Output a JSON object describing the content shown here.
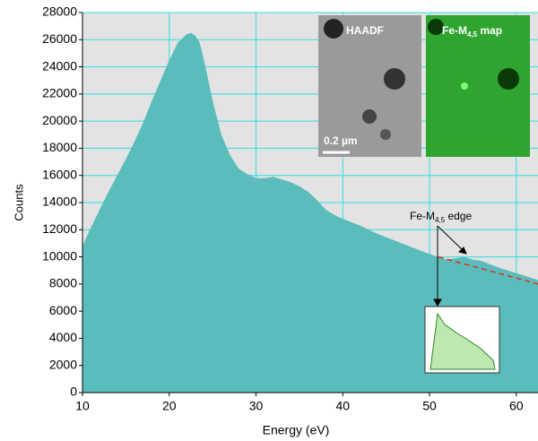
{
  "chart_data": {
    "type": "area",
    "x_label": "Energy (eV)",
    "y_label": "Counts",
    "x": [
      10,
      11,
      12,
      13,
      14,
      15,
      16,
      17,
      18,
      19,
      20,
      21,
      22,
      22.5,
      23,
      23.5,
      24,
      25,
      26,
      27,
      28,
      29,
      30,
      31,
      32,
      33,
      34,
      35,
      36,
      37,
      38,
      39,
      40,
      42,
      44,
      46,
      48,
      50,
      52,
      53,
      54,
      55,
      56,
      58,
      60,
      62.5
    ],
    "values": [
      10800,
      12200,
      13500,
      14800,
      16000,
      17200,
      18500,
      19900,
      21500,
      23000,
      24500,
      25800,
      26400,
      26500,
      26300,
      25800,
      24500,
      21500,
      19000,
      17500,
      16500,
      16100,
      15800,
      15800,
      15900,
      15700,
      15500,
      15200,
      14800,
      14200,
      13500,
      13100,
      12800,
      12300,
      11700,
      11200,
      10700,
      10200,
      9800,
      9900,
      10000,
      9800,
      9700,
      9200,
      8800,
      8300
    ],
    "color": "#5bbcbc",
    "xlim": [
      10,
      62.5
    ],
    "xticks": [
      10,
      20,
      30,
      40,
      50,
      60
    ],
    "ylim": [
      0,
      28000
    ],
    "yticks": [
      0,
      2000,
      4000,
      6000,
      8000,
      10000,
      12000,
      14000,
      16000,
      18000,
      20000,
      22000,
      24000,
      26000,
      28000
    ],
    "grid": true,
    "grid_color": "#33dde0",
    "background_fit": {
      "x": [
        51,
        62.5
      ],
      "values": [
        10000,
        8000
      ],
      "color": "#e03020"
    },
    "edge_label": {
      "main": "Fe-M",
      "sub": "4,5",
      "rest": " edge"
    },
    "insets": {
      "haadf": "HAADF",
      "map_main": "Fe-M",
      "map_sub": "4,5",
      "map_rest": " map",
      "scale": "0.2 µm"
    }
  }
}
